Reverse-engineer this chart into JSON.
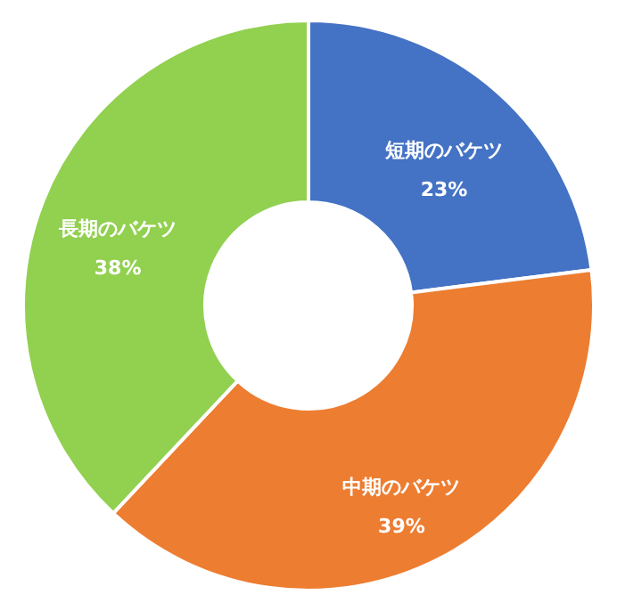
{
  "chart_data": {
    "type": "donut",
    "categories": [
      "短期のバケツ",
      "中期のバケツ",
      "長期のバケツ"
    ],
    "values": [
      23,
      39,
      38
    ],
    "value_labels": [
      "23%",
      "39%",
      "38%"
    ],
    "colors": [
      "#4472c4",
      "#ed7d31",
      "#92d050"
    ],
    "legend": false
  }
}
